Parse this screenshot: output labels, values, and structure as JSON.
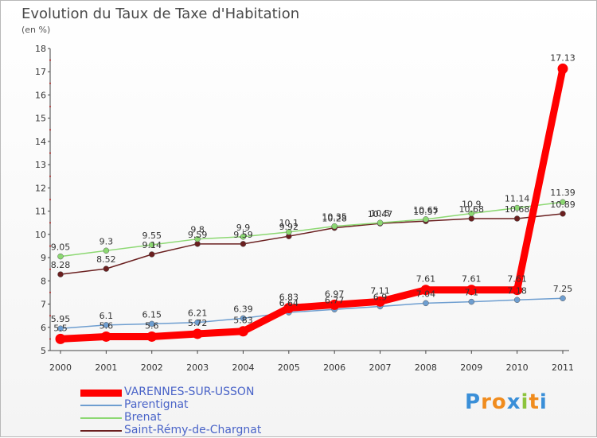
{
  "header": {
    "title": "Evolution du Taux de Taxe d'Habitation",
    "unit": "(en %)"
  },
  "chart_data": {
    "type": "line",
    "x": [
      "2000",
      "2001",
      "2002",
      "2003",
      "2004",
      "2005",
      "2006",
      "2007",
      "2008",
      "2009",
      "2010",
      "2011"
    ],
    "ylim": [
      5,
      18
    ],
    "yticks": [
      5,
      6,
      7,
      8,
      9,
      10,
      11,
      12,
      13,
      14,
      15,
      16,
      17,
      18
    ],
    "grid": false,
    "legend_position": "bottom-left",
    "series": [
      {
        "name": "VARENNES-SUR-USSON",
        "color": "#ff0000",
        "values": [
          5.5,
          5.6,
          5.6,
          5.72,
          5.83,
          6.83,
          6.97,
          7.11,
          7.61,
          7.61,
          7.61,
          17.13
        ],
        "labels": [
          "5.5",
          "5.6",
          "5.6",
          "5.72",
          "5.83",
          "6.83",
          "6.97",
          "7.11",
          "7.61",
          "7.61",
          "7.61",
          "17.13"
        ]
      },
      {
        "name": "Parentignat",
        "color": "#6e9ed0",
        "values": [
          5.95,
          6.1,
          6.15,
          6.21,
          6.39,
          6.64,
          6.77,
          6.9,
          7.04,
          7.1,
          7.18,
          7.25
        ],
        "labels": [
          "5.95",
          "6.1",
          "6.15",
          "6.21",
          "6.39",
          "6.64",
          "6.77",
          "6.9",
          "7.04",
          "7.1",
          "7.18",
          "7.25"
        ]
      },
      {
        "name": "Brenat",
        "color": "#8cd872",
        "values": [
          9.05,
          9.3,
          9.55,
          9.8,
          9.9,
          10.1,
          10.35,
          10.5,
          10.65,
          10.9,
          11.14,
          11.39
        ],
        "labels": [
          "9.05",
          "9.3",
          "9.55",
          "9.8",
          "9.9",
          "10.1",
          "10.35",
          "10.5",
          "10.65",
          "10.9",
          "11.14",
          "11.39"
        ]
      },
      {
        "name": "Saint-Rémy-de-Chargnat",
        "color": "#6a1f1f",
        "values": [
          8.28,
          8.52,
          9.14,
          9.59,
          9.59,
          9.92,
          10.28,
          10.47,
          10.57,
          10.68,
          10.68,
          10.89
        ],
        "labels": [
          "8.28",
          "8.52",
          "9.14",
          "9.59",
          "9.59",
          "9.92",
          "10.28",
          "10.47",
          "10.57",
          "10.68",
          "10.68",
          "10.89"
        ]
      }
    ]
  },
  "branding": {
    "letters": [
      "P",
      "r",
      "o",
      "x",
      "i",
      "t",
      "i"
    ],
    "colors": [
      "#3a8fd8",
      "#f08c1e",
      "#f08c1e",
      "#3a8fd8",
      "#8cc43c",
      "#f08c1e",
      "#3a8fd8"
    ]
  }
}
